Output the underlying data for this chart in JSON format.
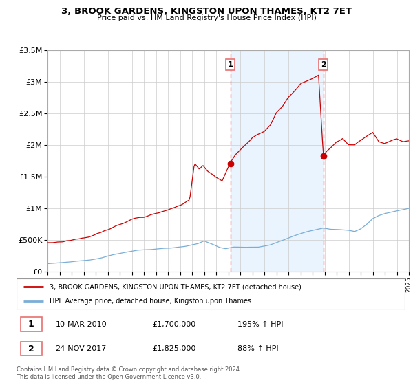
{
  "title": "3, BROOK GARDENS, KINGSTON UPON THAMES, KT2 7ET",
  "subtitle": "Price paid vs. HM Land Registry's House Price Index (HPI)",
  "legend_line1": "3, BROOK GARDENS, KINGSTON UPON THAMES, KT2 7ET (detached house)",
  "legend_line2": "HPI: Average price, detached house, Kingston upon Thames",
  "sale1_date": "10-MAR-2010",
  "sale1_price": 1700000,
  "sale1_label": "195% ↑ HPI",
  "sale2_date": "24-NOV-2017",
  "sale2_price": 1825000,
  "sale2_label": "88% ↑ HPI",
  "footer": "Contains HM Land Registry data © Crown copyright and database right 2024.\nThis data is licensed under the Open Government Licence v3.0.",
  "hpi_color": "#7aaed6",
  "price_color": "#cc0000",
  "vline_color": "#e87070",
  "bg_color": "#ffffff",
  "grid_color": "#cccccc",
  "ylim": [
    0,
    3500000
  ],
  "yticks": [
    0,
    500000,
    1000000,
    1500000,
    2000000,
    2500000,
    3000000,
    3500000
  ],
  "sale1_x": 2010.19,
  "sale2_x": 2017.9,
  "sale1_price_marker": 1700000,
  "sale2_price_marker": 1825000
}
